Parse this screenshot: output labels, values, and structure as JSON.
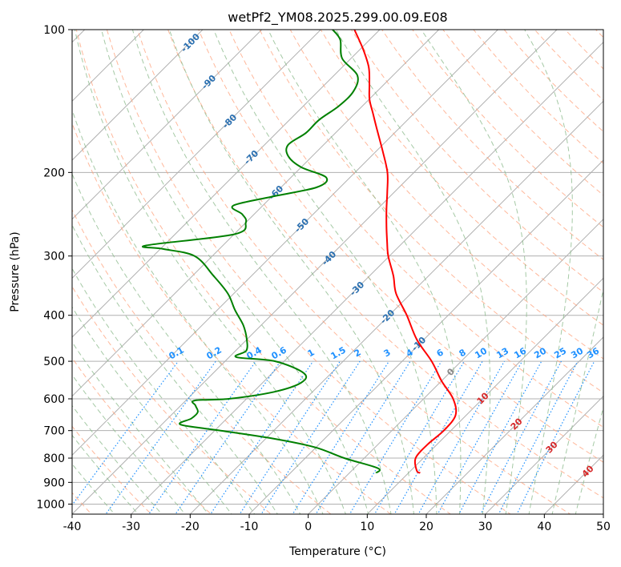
{
  "chart_data": {
    "type": "line",
    "title": "wetPf2_YM08.2025.299.00.09.E08",
    "xlabel": "Temperature (°C)",
    "ylabel": "Pressure (hPa)",
    "xlim": [
      -40,
      50
    ],
    "ylim": [
      1050,
      100
    ],
    "x_ticks": [
      "-40",
      "-30",
      "-20",
      "-10",
      "0",
      "10",
      "20",
      "30",
      "40",
      "50"
    ],
    "y_ticks": [
      "100",
      "200",
      "300",
      "400",
      "500",
      "600",
      "700",
      "800",
      "900",
      "1000"
    ],
    "series": [
      {
        "name": "temperature",
        "color": "#ff0000",
        "pressure": [
          860,
          850,
          800,
          750,
          700,
          650,
          600,
          550,
          500,
          450,
          400,
          360,
          330,
          300,
          280,
          260,
          240,
          220,
          200,
          180,
          160,
          150,
          140,
          130,
          120,
          110,
          100
        ],
        "temp_c": [
          12.0,
          11.0,
          8.7,
          8.4,
          8.8,
          8.2,
          5.0,
          0.0,
          -5.0,
          -11.2,
          -17.0,
          -22.5,
          -26.0,
          -30.2,
          -32.8,
          -35.5,
          -38.3,
          -41.2,
          -44.5,
          -49.0,
          -54.2,
          -57.0,
          -60.0,
          -62.6,
          -65.5,
          -69.5,
          -74.3
        ]
      },
      {
        "name": "dewpoint",
        "color": "#008000",
        "pressure": [
          860,
          840,
          800,
          760,
          730,
          700,
          680,
          660,
          640,
          620,
          605,
          600,
          580,
          555,
          530,
          500,
          490,
          475,
          450,
          420,
          390,
          360,
          330,
          300,
          290,
          285,
          270,
          255,
          245,
          235,
          225,
          215,
          205,
          195,
          185,
          175,
          165,
          155,
          145,
          135,
          125,
          115,
          105,
          100
        ],
        "temp_c": [
          4.5,
          4.0,
          -3.4,
          -10.0,
          -18.0,
          -29.0,
          -36.8,
          -36.0,
          -36.0,
          -37.5,
          -38.5,
          -33.0,
          -26.5,
          -23.5,
          -24.6,
          -31.5,
          -38.8,
          -38.2,
          -40.0,
          -43.0,
          -47.0,
          -51.0,
          -56.5,
          -63.0,
          -69.5,
          -73.0,
          -60.0,
          -60.0,
          -62.0,
          -65.0,
          -60.0,
          -54.0,
          -54.0,
          -60.0,
          -64.0,
          -66.0,
          -65.0,
          -65.0,
          -64.0,
          -64.0,
          -66.0,
          -71.5,
          -75.0,
          -78.0
        ]
      }
    ],
    "dry_adiabat_labels": [
      "-100",
      "-90",
      "-80",
      "-70",
      "-60",
      "-50",
      "-40",
      "-30",
      "-20",
      "-10",
      "0",
      "10",
      "20",
      "30",
      "40"
    ],
    "mixing_ratio_labels": [
      "0.1",
      "0.2",
      "0.4",
      "0.6",
      "1",
      "1.5",
      "2",
      "3",
      "4",
      "6",
      "8",
      "10",
      "13",
      "16",
      "20",
      "25",
      "30",
      "36"
    ],
    "colors": {
      "temperature": "#ff0000",
      "dewpoint": "#008000",
      "dry_adiabat": "#ffa07a",
      "moist_adiabat": "#8fbc8f",
      "mixing_ratio": "#1e90ff",
      "isotherm": "#999999",
      "adiabat_label_cold": "#2a6fb0",
      "adiabat_label_warm": "#d62728"
    }
  }
}
